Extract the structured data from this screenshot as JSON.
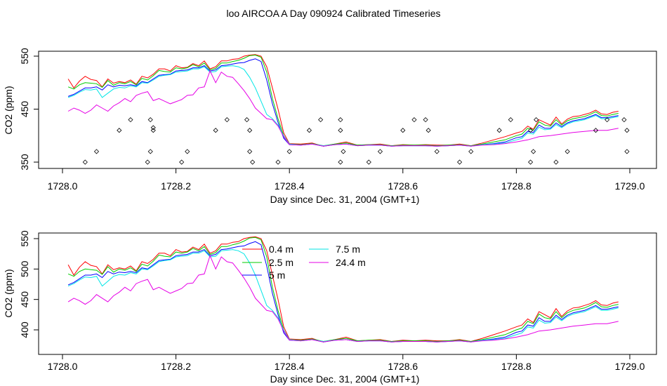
{
  "title": "loo AIRCOA A  Day 090924  Calibrated Timeseries",
  "chart_data": [
    {
      "type": "scatter",
      "xlabel": "Day since Dec. 31, 2004 (GMT+1)",
      "ylabel": "CO2 (ppm)",
      "xlim": [
        1728.0,
        1729.0
      ],
      "ylim": [
        350,
        550
      ],
      "xticks": [
        "1728.0",
        "1728.2",
        "1728.4",
        "1728.6",
        "1728.8",
        "1729.0"
      ],
      "yticks": [
        "350",
        "450",
        "550"
      ],
      "series": [
        {
          "name": "0.4 m",
          "color": "#ff0000",
          "x": [
            1728.01,
            1728.02,
            1728.03,
            1728.04,
            1728.05,
            1728.06,
            1728.07,
            1728.08,
            1728.09,
            1728.1,
            1728.11,
            1728.12,
            1728.13,
            1728.14,
            1728.15,
            1728.16,
            1728.17,
            1728.18,
            1728.19,
            1728.2,
            1728.21,
            1728.22,
            1728.23,
            1728.24,
            1728.25,
            1728.26,
            1728.27,
            1728.28,
            1728.29,
            1728.3,
            1728.31,
            1728.32,
            1728.33,
            1728.34,
            1728.35,
            1728.36,
            1728.37,
            1728.38,
            1728.39,
            1728.4,
            1728.42,
            1728.44,
            1728.46,
            1728.48,
            1728.5,
            1728.52,
            1728.54,
            1728.56,
            1728.58,
            1728.6,
            1728.62,
            1728.64,
            1728.66,
            1728.68,
            1728.7,
            1728.72,
            1728.74,
            1728.76,
            1728.78,
            1728.8,
            1728.81,
            1728.82,
            1728.83,
            1728.84,
            1728.85,
            1728.86,
            1728.87,
            1728.88,
            1728.89,
            1728.9,
            1728.91,
            1728.92,
            1728.93,
            1728.94,
            1728.95,
            1728.96,
            1728.97,
            1728.98
          ],
          "y": [
            507,
            490,
            503,
            512,
            506,
            504,
            492,
            507,
            499,
            502,
            500,
            505,
            497,
            512,
            509,
            516,
            526,
            526,
            522,
            532,
            528,
            529,
            536,
            532,
            541,
            526,
            530,
            541,
            541,
            544,
            545,
            550,
            552,
            553,
            550,
            530,
            490,
            450,
            405,
            385,
            384,
            386,
            380,
            384,
            388,
            382,
            383,
            384,
            381,
            383,
            382,
            383,
            382,
            382,
            384,
            381,
            386,
            392,
            398,
            405,
            408,
            418,
            412,
            430,
            425,
            420,
            435,
            422,
            431,
            436,
            437,
            440,
            443,
            448,
            441,
            440,
            444,
            446
          ]
        },
        {
          "name": "2.5 m",
          "color": "#00cc00",
          "x": [
            1728.01,
            1728.02,
            1728.03,
            1728.04,
            1728.05,
            1728.06,
            1728.07,
            1728.08,
            1728.09,
            1728.1,
            1728.11,
            1728.12,
            1728.13,
            1728.14,
            1728.15,
            1728.16,
            1728.17,
            1728.18,
            1728.19,
            1728.2,
            1728.21,
            1728.22,
            1728.23,
            1728.24,
            1728.25,
            1728.26,
            1728.27,
            1728.28,
            1728.29,
            1728.3,
            1728.31,
            1728.32,
            1728.33,
            1728.34,
            1728.35,
            1728.36,
            1728.37,
            1728.38,
            1728.39,
            1728.4,
            1728.42,
            1728.44,
            1728.46,
            1728.48,
            1728.5,
            1728.52,
            1728.54,
            1728.56,
            1728.58,
            1728.6,
            1728.62,
            1728.64,
            1728.66,
            1728.68,
            1728.7,
            1728.72,
            1728.74,
            1728.76,
            1728.78,
            1728.8,
            1728.81,
            1728.82,
            1728.83,
            1728.84,
            1728.85,
            1728.86,
            1728.87,
            1728.88,
            1728.89,
            1728.9,
            1728.91,
            1728.92,
            1728.93,
            1728.94,
            1728.95,
            1728.96,
            1728.97,
            1728.98
          ],
          "y": [
            492,
            488,
            496,
            500,
            499,
            498,
            491,
            504,
            495,
            500,
            498,
            502,
            496,
            508,
            505,
            513,
            523,
            521,
            520,
            528,
            526,
            528,
            534,
            530,
            537,
            524,
            527,
            537,
            537,
            540,
            542,
            546,
            551,
            552,
            548,
            520,
            470,
            432,
            400,
            384,
            383,
            385,
            381,
            384,
            386,
            382,
            383,
            383,
            381,
            382,
            382,
            382,
            381,
            382,
            383,
            381,
            384,
            388,
            392,
            400,
            403,
            414,
            410,
            426,
            420,
            418,
            430,
            420,
            428,
            432,
            434,
            436,
            440,
            445,
            438,
            437,
            440,
            442
          ]
        },
        {
          "name": "5 m",
          "color": "#0000ff",
          "x": [
            1728.01,
            1728.02,
            1728.03,
            1728.04,
            1728.05,
            1728.06,
            1728.07,
            1728.08,
            1728.09,
            1728.1,
            1728.11,
            1728.12,
            1728.13,
            1728.14,
            1728.15,
            1728.16,
            1728.17,
            1728.18,
            1728.19,
            1728.2,
            1728.21,
            1728.22,
            1728.23,
            1728.24,
            1728.25,
            1728.26,
            1728.27,
            1728.28,
            1728.29,
            1728.3,
            1728.31,
            1728.32,
            1728.33,
            1728.34,
            1728.35,
            1728.36,
            1728.37,
            1728.38,
            1728.39,
            1728.4,
            1728.42,
            1728.44,
            1728.46,
            1728.48,
            1728.5,
            1728.52,
            1728.54,
            1728.56,
            1728.58,
            1728.6,
            1728.62,
            1728.64,
            1728.66,
            1728.68,
            1728.7,
            1728.72,
            1728.74,
            1728.76,
            1728.78,
            1728.8,
            1728.81,
            1728.82,
            1728.83,
            1728.84,
            1728.85,
            1728.86,
            1728.87,
            1728.88,
            1728.89,
            1728.9,
            1728.91,
            1728.92,
            1728.93,
            1728.94,
            1728.95,
            1728.96,
            1728.97,
            1728.98
          ],
          "y": [
            474,
            478,
            484,
            490,
            490,
            492,
            486,
            496,
            492,
            495,
            494,
            496,
            494,
            502,
            500,
            507,
            514,
            515,
            516,
            522,
            523,
            524,
            528,
            528,
            532,
            522,
            524,
            532,
            533,
            535,
            537,
            538,
            542,
            545,
            540,
            505,
            460,
            425,
            395,
            383,
            382,
            384,
            380,
            383,
            384,
            381,
            382,
            382,
            380,
            381,
            381,
            381,
            380,
            381,
            382,
            380,
            383,
            385,
            388,
            396,
            398,
            408,
            406,
            420,
            414,
            414,
            424,
            417,
            424,
            428,
            430,
            432,
            436,
            440,
            434,
            434,
            436,
            438
          ]
        },
        {
          "name": "7.5 m",
          "color": "#00e6e6",
          "x": [
            1728.01,
            1728.02,
            1728.03,
            1728.04,
            1728.05,
            1728.06,
            1728.07,
            1728.08,
            1728.09,
            1728.1,
            1728.11,
            1728.12,
            1728.13,
            1728.14,
            1728.15,
            1728.16,
            1728.17,
            1728.18,
            1728.19,
            1728.2,
            1728.21,
            1728.22,
            1728.23,
            1728.24,
            1728.25,
            1728.26,
            1728.27,
            1728.28,
            1728.29,
            1728.3,
            1728.31,
            1728.32,
            1728.33,
            1728.34,
            1728.35,
            1728.36,
            1728.37,
            1728.38,
            1728.39,
            1728.4,
            1728.42,
            1728.44,
            1728.46,
            1728.48,
            1728.5,
            1728.52,
            1728.54,
            1728.56,
            1728.58,
            1728.6,
            1728.62,
            1728.64,
            1728.66,
            1728.68,
            1728.7,
            1728.72,
            1728.74,
            1728.76,
            1728.78,
            1728.8,
            1728.81,
            1728.82,
            1728.83,
            1728.84,
            1728.85,
            1728.86,
            1728.87,
            1728.88,
            1728.89,
            1728.9,
            1728.91,
            1728.92,
            1728.93,
            1728.94,
            1728.95,
            1728.96,
            1728.97,
            1728.98
          ],
          "y": [
            472,
            476,
            482,
            487,
            486,
            488,
            472,
            480,
            488,
            491,
            490,
            494,
            492,
            500,
            499,
            505,
            512,
            514,
            515,
            520,
            521,
            522,
            526,
            526,
            530,
            520,
            521,
            530,
            531,
            532,
            530,
            525,
            510,
            490,
            465,
            440,
            432,
            420,
            400,
            384,
            382,
            384,
            381,
            383,
            384,
            381,
            382,
            382,
            380,
            381,
            381,
            381,
            380,
            381,
            382,
            380,
            383,
            384,
            386,
            392,
            395,
            405,
            403,
            416,
            411,
            412,
            421,
            415,
            422,
            426,
            428,
            430,
            434,
            438,
            432,
            432,
            434,
            436
          ]
        },
        {
          "name": "24.4 m",
          "color": "#e600e6",
          "x": [
            1728.01,
            1728.02,
            1728.03,
            1728.04,
            1728.05,
            1728.06,
            1728.07,
            1728.08,
            1728.09,
            1728.1,
            1728.11,
            1728.12,
            1728.13,
            1728.14,
            1728.15,
            1728.16,
            1728.17,
            1728.18,
            1728.19,
            1728.2,
            1728.21,
            1728.22,
            1728.23,
            1728.24,
            1728.25,
            1728.26,
            1728.27,
            1728.28,
            1728.29,
            1728.3,
            1728.31,
            1728.32,
            1728.33,
            1728.34,
            1728.35,
            1728.36,
            1728.37,
            1728.38,
            1728.39,
            1728.4,
            1728.42,
            1728.44,
            1728.46,
            1728.48,
            1728.5,
            1728.52,
            1728.54,
            1728.56,
            1728.58,
            1728.6,
            1728.62,
            1728.64,
            1728.66,
            1728.68,
            1728.7,
            1728.72,
            1728.74,
            1728.76,
            1728.78,
            1728.8,
            1728.82,
            1728.84,
            1728.86,
            1728.88,
            1728.9,
            1728.92,
            1728.94,
            1728.96,
            1728.98
          ],
          "y": [
            446,
            452,
            448,
            442,
            448,
            458,
            452,
            446,
            456,
            462,
            470,
            464,
            476,
            480,
            483,
            466,
            470,
            465,
            460,
            464,
            468,
            476,
            477,
            490,
            492,
            522,
            500,
            520,
            512,
            510,
            498,
            485,
            470,
            452,
            442,
            432,
            430,
            418,
            398,
            383,
            382,
            384,
            380,
            383,
            384,
            381,
            382,
            382,
            380,
            381,
            381,
            381,
            380,
            381,
            382,
            380,
            382,
            383,
            385,
            388,
            392,
            398,
            400,
            403,
            406,
            408,
            410,
            410,
            414
          ]
        }
      ],
      "scatter_points": {
        "x": [
          1728.04,
          1728.06,
          1728.1,
          1728.12,
          1728.15,
          1728.155,
          1728.16,
          1728.155,
          1728.16,
          1728.21,
          1728.22,
          1728.27,
          1728.29,
          1728.325,
          1728.33,
          1728.33,
          1728.335,
          1728.38,
          1728.4,
          1728.435,
          1728.455,
          1728.49,
          1728.49,
          1728.495,
          1728.49,
          1728.54,
          1728.56,
          1728.6,
          1728.62,
          1728.64,
          1728.645,
          1728.66,
          1728.7,
          1728.72,
          1728.77,
          1728.79,
          1728.825,
          1728.83,
          1728.825,
          1728.835,
          1728.87,
          1728.89,
          1728.94,
          1728.96,
          1728.99,
          1728.995,
          1728.995
        ],
        "y": [
          350,
          370,
          410,
          430,
          350,
          370,
          410,
          430,
          415,
          350,
          370,
          410,
          430,
          430,
          410,
          370,
          350,
          350,
          370,
          410,
          430,
          410,
          430,
          370,
          350,
          350,
          370,
          410,
          430,
          430,
          410,
          370,
          350,
          370,
          410,
          430,
          350,
          370,
          410,
          430,
          350,
          370,
          410,
          430,
          430,
          410,
          370
        ]
      }
    },
    {
      "type": "line",
      "xlabel": "Day since Dec. 31, 2004 (GMT+1)",
      "ylabel": "CO2 (ppm)",
      "xlim": [
        1728.0,
        1729.0
      ],
      "ylim": [
        380,
        555
      ],
      "xticks": [
        "1728.0",
        "1728.2",
        "1728.4",
        "1728.6",
        "1728.8",
        "1729.0"
      ],
      "yticks": [
        "400",
        "450",
        "500",
        "550"
      ],
      "legend": {
        "placement": "top-center",
        "entries": [
          "0.4 m",
          "2.5 m",
          "5 m",
          "7.5 m",
          "24.4 m"
        ]
      },
      "series_ref": "same as top panel series"
    }
  ]
}
